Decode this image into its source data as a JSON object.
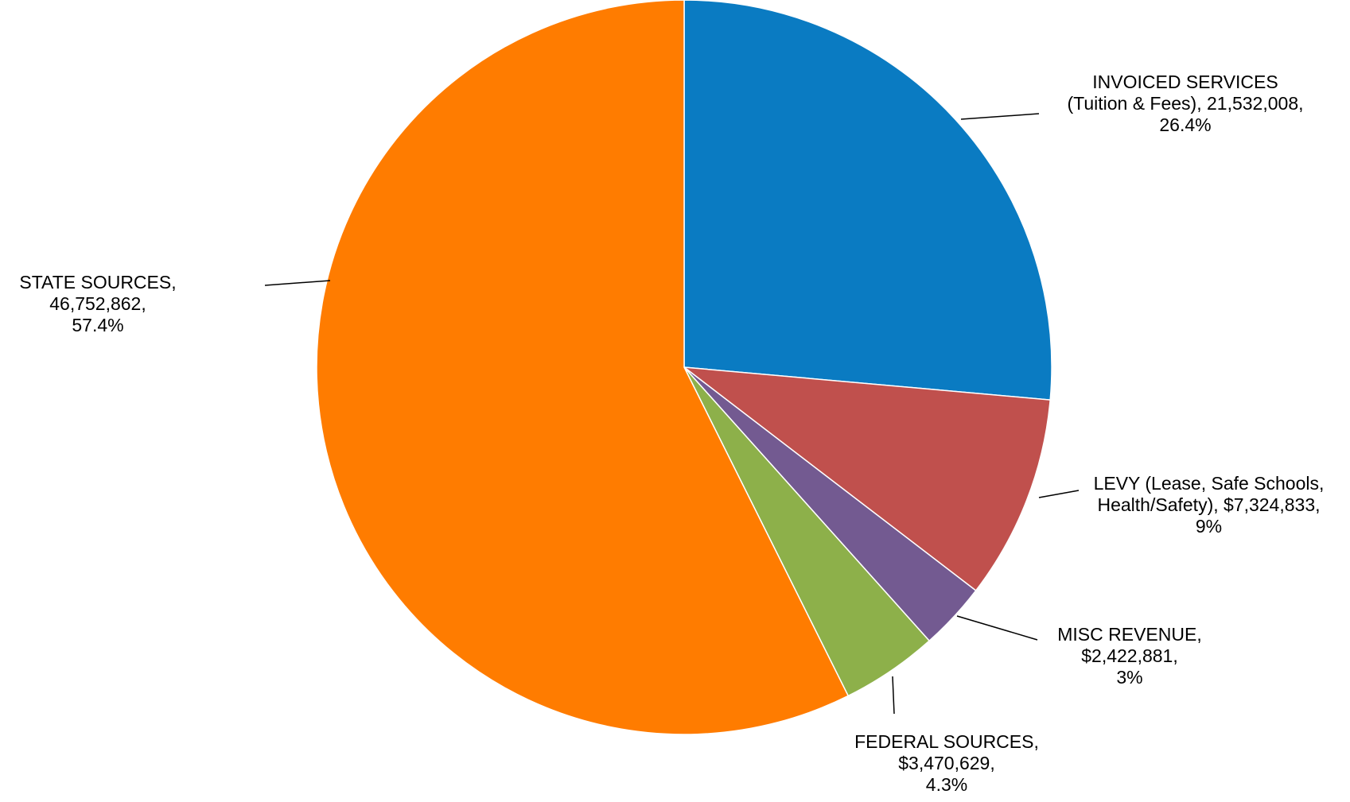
{
  "chart_data": {
    "type": "pie",
    "title": "",
    "start_angle_deg": 0,
    "direction": "clockwise",
    "slices": [
      {
        "name": "INVOICED SERVICES (Tuition & Fees)",
        "value": 21532008,
        "percent": 26.4,
        "color": "#0A7BC2",
        "label_lines": [
          "INVOICED SERVICES",
          "(Tuition & Fees), 21,532,008,",
          "26.4%"
        ]
      },
      {
        "name": "LEVY (Lease, Safe Schools, Health/Safety)",
        "value": 7324833,
        "percent": 9,
        "color": "#C0504D",
        "label_lines": [
          "LEVY (Lease, Safe Schools,",
          "Health/Safety), $7,324,833,",
          "9%"
        ]
      },
      {
        "name": "MISC REVENUE",
        "value": 2422881,
        "percent": 3,
        "color": "#735A91",
        "label_lines": [
          "MISC REVENUE,",
          "$2,422,881,",
          "3%"
        ]
      },
      {
        "name": "FEDERAL SOURCES",
        "value": 3470629,
        "percent": 4.3,
        "color": "#8DB04A",
        "label_lines": [
          "FEDERAL SOURCES,",
          "$3,470,629,",
          "4.3%"
        ]
      },
      {
        "name": "STATE SOURCES",
        "value": 46752862,
        "percent": 57.4,
        "color": "#FF7C00",
        "label_lines": [
          "STATE SOURCES,",
          "46,752,862,",
          "57.4%"
        ]
      }
    ],
    "legend": "none"
  }
}
